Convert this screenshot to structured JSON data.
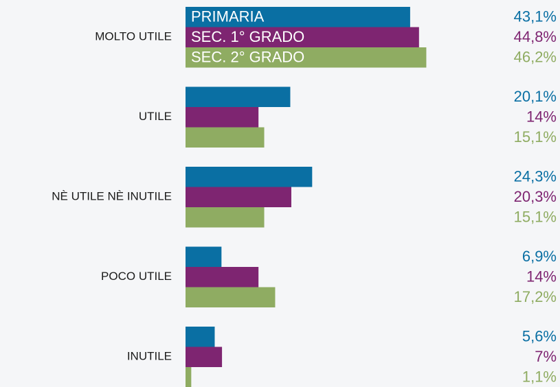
{
  "chart_data": {
    "type": "bar",
    "orientation": "horizontal",
    "categories": [
      "MOLTO UTILE",
      "UTILE",
      "NÈ UTILE NÈ INUTILE",
      "POCO UTILE",
      "INUTILE"
    ],
    "series": [
      {
        "name": "PRIMARIA",
        "color": "#0a6fa3",
        "values": [
          43.1,
          20.1,
          24.3,
          6.9,
          5.6
        ],
        "value_labels": [
          "43,1%",
          "20,1%",
          "24,3%",
          "6,9%",
          "5,6%"
        ]
      },
      {
        "name": "SEC. 1° GRADO",
        "color": "#7e2571",
        "values": [
          44.8,
          14,
          20.3,
          14,
          7
        ],
        "value_labels": [
          "44,8%",
          "14%",
          "20,3%",
          "14%",
          "7%"
        ]
      },
      {
        "name": "SEC. 2° GRADO",
        "color": "#8fac62",
        "values": [
          46.2,
          15.1,
          15.1,
          17.2,
          1.1
        ],
        "value_labels": [
          "46,2%",
          "15,1%",
          "15,1%",
          "17,2%",
          "1,1%"
        ]
      }
    ]
  }
}
